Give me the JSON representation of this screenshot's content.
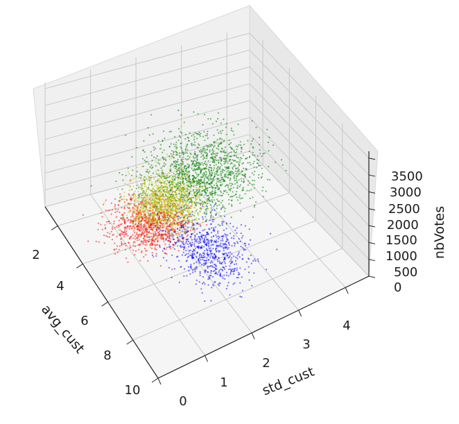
{
  "chart_data": {
    "type": "scatter",
    "projection": "3d",
    "title": "",
    "xlabel": "avg_cust",
    "ylabel": "std_cust",
    "zlabel": "nbVotes",
    "xlim": [
      1,
      10
    ],
    "ylim": [
      0,
      4.5
    ],
    "zlim": [
      0,
      3700
    ],
    "xticks": [
      "2",
      "4",
      "6",
      "8",
      "10"
    ],
    "yticks": [
      "0",
      "1",
      "2",
      "3",
      "4"
    ],
    "zticks": [
      "0",
      "500",
      "1000",
      "1500",
      "2000",
      "2500",
      "3000",
      "3500"
    ],
    "grid": true,
    "legend": "none",
    "series": [
      {
        "color": "#ff0000",
        "center": {
          "avg_cust": 3.5,
          "std_cust": 1.6,
          "nbVotes": 150
        },
        "spread": {
          "avg_cust": 0.7,
          "std_cust": 0.4,
          "nbVotes": 120
        }
      },
      {
        "color": "#0000ff",
        "center": {
          "avg_cust": 5.5,
          "std_cust": 2.3,
          "nbVotes": 60
        },
        "spread": {
          "avg_cust": 1.0,
          "std_cust": 0.35,
          "nbVotes": 40
        }
      },
      {
        "color": "#008000",
        "center": {
          "avg_cust": 2.8,
          "std_cust": 2.9,
          "nbVotes": 700
        },
        "spread": {
          "avg_cust": 0.8,
          "std_cust": 0.6,
          "nbVotes": 500
        }
      },
      {
        "color": "#bfbf00",
        "center": {
          "avg_cust": 3.2,
          "std_cust": 2.0,
          "nbVotes": 450
        },
        "spread": {
          "avg_cust": 0.6,
          "std_cust": 0.35,
          "nbVotes": 350
        }
      }
    ]
  }
}
